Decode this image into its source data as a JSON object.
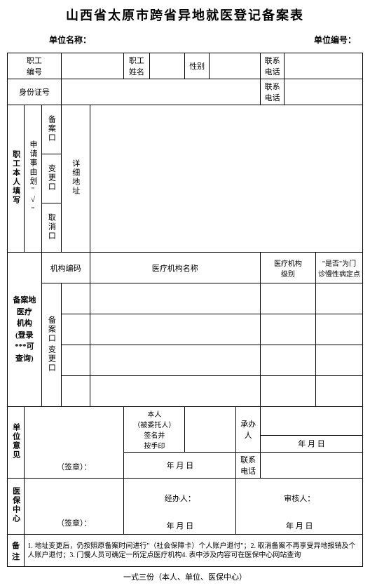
{
  "title": "山西省太原市跨省异地就医登记备案表",
  "header": {
    "unit_name_label": "单位名称：",
    "unit_code_label": "单位编号："
  },
  "row1": {
    "emp_no": "职工\n编号",
    "emp_name": "职工\n姓名",
    "gender": "性别",
    "phone": "联系\n电话"
  },
  "row2": {
    "id_no": "身份证号",
    "phone": "联系\n电话"
  },
  "section1": {
    "side": "职工本人填写",
    "reason": "申请事由划\"√\"",
    "opt1": "备案口",
    "opt2": "变更口",
    "opt3": "取消口",
    "addr": "详细地址"
  },
  "inst_header": {
    "code": "机构编码",
    "name": "医疗机构名称",
    "level": "医疗机构\n级别",
    "chronic": "\"是否\"为门\n诊慢性病定点"
  },
  "section2": {
    "side": "备案地\n医疗\n机构\n(登录\n***可\n查询)",
    "opt1": "备案口",
    "opt2": "变更口"
  },
  "section3": {
    "side": "单位意见",
    "seal": "（签章）：",
    "self": "本人",
    "self2": "（被委托人）",
    "self3": "签名并\n按手印",
    "handler": "承办人",
    "date": "年    月    日",
    "phone": "联系\n电话"
  },
  "section4": {
    "side": "医保中心",
    "seal": "（签章）：",
    "processor": "经办人：",
    "auditor": "审核人：",
    "date": "年    月    日"
  },
  "remark": {
    "label": "备注",
    "text": "1. 地址变更后，仍按照原备案时间进行\"（社会保障卡）个人账户退付\"；2. 取消备案不再享受异地报销及个人账户退付；3. 门慢人员可确定一所定点医疗机构4. 表中涉及内容可在医保中心网站查询"
  },
  "footer": "一式三份（本人、单位、医保中心）"
}
